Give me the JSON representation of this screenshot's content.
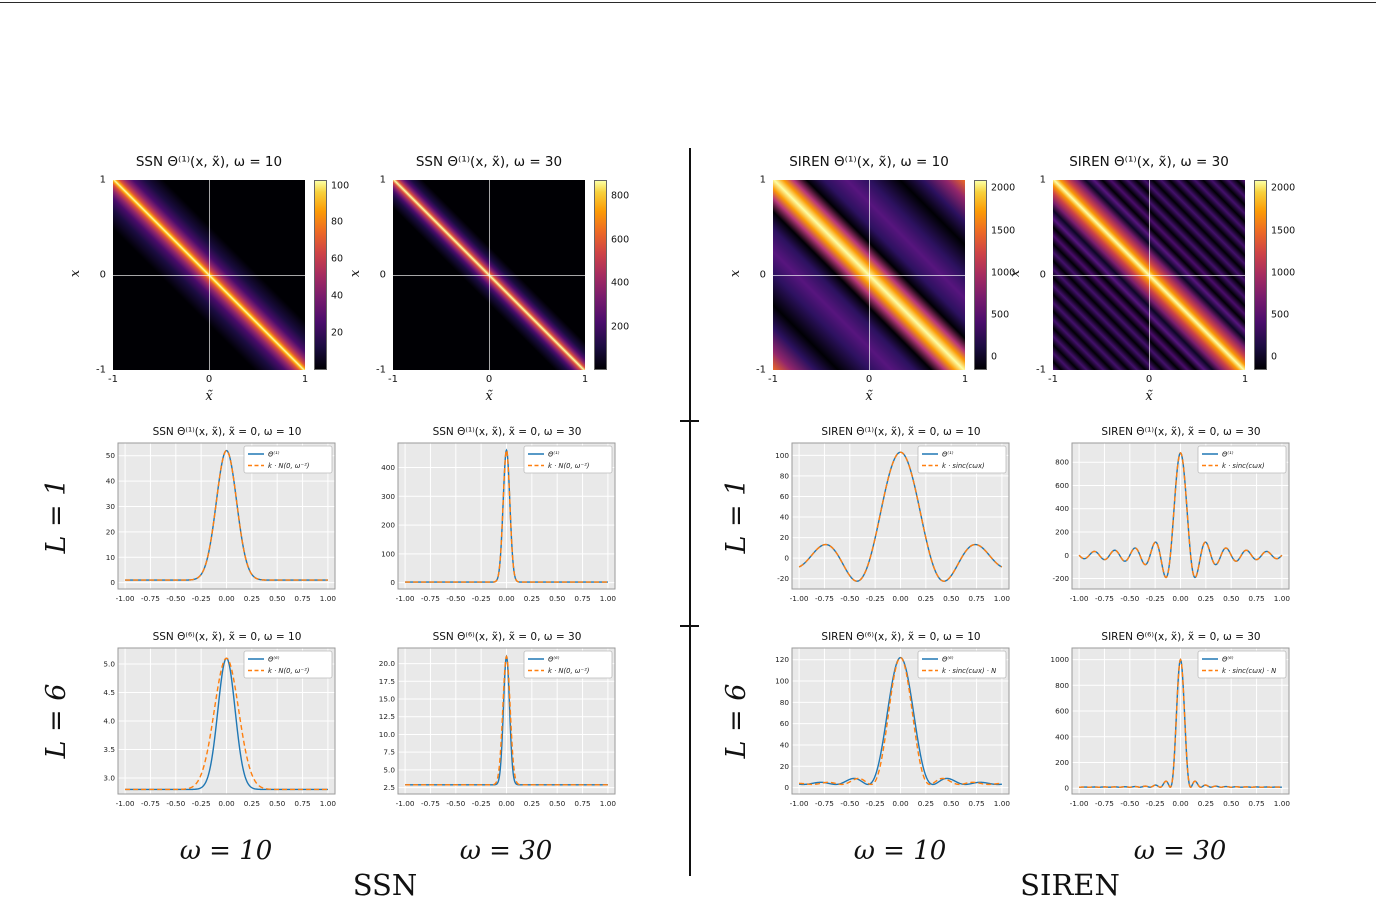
{
  "colors": {
    "series_blue": "#1f77b4",
    "series_orange": "#ff7f0e",
    "plot_bg": "#e9e9e9",
    "grid": "#ffffff",
    "frame": "#9a9a9a",
    "divider": "#111111",
    "colormap_stops": [
      "#000004 0%",
      "#1b0c41 12%",
      "#4a0c6b 25%",
      "#781c6d 38%",
      "#a52c60 50%",
      "#cf4446 62%",
      "#ed6925 73%",
      "#fb9b06 84%",
      "#f7d03c 94%",
      "#fcffa4 100%"
    ]
  },
  "layout_labels": {
    "row_labels": [
      "L = 1",
      "L = 6"
    ],
    "omega_cols": [
      "ω = 10",
      "ω = 30",
      "ω = 10",
      "ω = 30"
    ],
    "groups": [
      "SSN",
      "SIREN"
    ]
  },
  "chart_data": {
    "shared_x": {
      "xtick_values": [
        -1,
        -0.75,
        -0.5,
        -0.25,
        0,
        0.25,
        0.5,
        0.75,
        1
      ],
      "xtick_labels": [
        "-1.00",
        "-0.75",
        "-0.50",
        "-0.25",
        "0.00",
        "0.25",
        "0.50",
        "0.75",
        "1.00"
      ]
    },
    "heatmaps": [
      {
        "type": "heatmap",
        "title": "SSN Θ⁽¹⁾(x, x̃), ω = 10",
        "xlabel": "x̃",
        "ylabel": "x",
        "xlim": [
          -1,
          1
        ],
        "ylim": [
          -1,
          1
        ],
        "xtick_labels": [
          "-1",
          "0",
          "1"
        ],
        "ytick_labels": [
          "1",
          "0",
          "-1"
        ],
        "pattern": "narrow bright band along anti-diagonal, black elsewhere",
        "colorbar": {
          "min": 0,
          "max": 103,
          "tick_values": [
            100,
            80,
            60,
            40,
            20
          ],
          "tick_labels": [
            "100",
            "80",
            "60",
            "40",
            "20"
          ]
        },
        "gradient_stops": [
          "#000004 0%",
          "#000004 37%",
          "#1b0c41 42%",
          "#4a0c6b 45%",
          "#92266b 47%",
          "#dd513a 48.6%",
          "#fca50a 49.4%",
          "#fcffa4 50%",
          "#fca50a 50.6%",
          "#dd513a 51.4%",
          "#92266b 53%",
          "#4a0c6b 55%",
          "#1b0c41 58%",
          "#000004 63%",
          "#000004 100%"
        ]
      },
      {
        "type": "heatmap",
        "title": "SSN Θ⁽¹⁾(x, x̃), ω = 30",
        "xlabel": "x̃",
        "ylabel": "x",
        "xlim": [
          -1,
          1
        ],
        "ylim": [
          -1,
          1
        ],
        "xtick_labels": [
          "-1",
          "0",
          "1"
        ],
        "ytick_labels": [
          "1",
          "0",
          "-1"
        ],
        "pattern": "very narrow bright band along anti-diagonal, black elsewhere",
        "colorbar": {
          "min": 0,
          "max": 875,
          "tick_values": [
            800,
            600,
            400,
            200
          ],
          "tick_labels": [
            "800",
            "600",
            "400",
            "200"
          ]
        },
        "gradient_stops": [
          "#000004 0%",
          "#000004 42.5%",
          "#1b0c41 45.5%",
          "#4a0c6b 47%",
          "#92266b 48.2%",
          "#dd513a 49.2%",
          "#fcffa4 50%",
          "#dd513a 50.8%",
          "#92266b 51.8%",
          "#4a0c6b 53%",
          "#1b0c41 54.5%",
          "#000004 57.5%",
          "#000004 100%"
        ]
      },
      {
        "type": "heatmap",
        "title": "SIREN Θ⁽¹⁾(x, x̃), ω = 10",
        "xlabel": "x̃",
        "ylabel": "x",
        "xlim": [
          -1,
          1
        ],
        "ylim": [
          -1,
          1
        ],
        "xtick_labels": [
          "-1",
          "0",
          "1"
        ],
        "ytick_labels": [
          "1",
          "0",
          "-1"
        ],
        "pattern": "wide bright anti-diagonal band with sinc side lobes, purple/black oscillations, orange glow at corners",
        "colorbar": {
          "min": -150,
          "max": 2100,
          "tick_values": [
            2000,
            1500,
            1000,
            500,
            0
          ],
          "tick_labels": [
            "2000",
            "1500",
            "1000",
            "500",
            "0"
          ]
        },
        "gradient_stops": [
          "#ed6925 0%",
          "#92266b 5%",
          "#2c115f 11%",
          "#000004 17%",
          "#2c115f 25%",
          "#57157e 31%",
          "#2c115f 37%",
          "#000004 41.5%",
          "#b73779 45%",
          "#fb9b06 47.5%",
          "#fcffa4 50%",
          "#fb9b06 52.5%",
          "#b73779 55%",
          "#000004 58.5%",
          "#2c115f 63%",
          "#57157e 69%",
          "#2c115f 75%",
          "#000004 83%",
          "#2c115f 89%",
          "#92266b 95%",
          "#ed6925 100%"
        ]
      },
      {
        "type": "heatmap",
        "title": "SIREN Θ⁽¹⁾(x, x̃), ω = 30",
        "xlabel": "x̃",
        "ylabel": "x",
        "xlim": [
          -1,
          1
        ],
        "ylim": [
          -1,
          1
        ],
        "xtick_labels": [
          "-1",
          "0",
          "1"
        ],
        "ytick_labels": [
          "1",
          "0",
          "-1"
        ],
        "pattern": "narrow bright anti-diagonal band with many fine purple/black sinc stripes",
        "colorbar": {
          "min": -150,
          "max": 2100,
          "tick_values": [
            2000,
            1500,
            1000,
            500,
            0
          ],
          "tick_labels": [
            "2000",
            "1500",
            "1000",
            "500",
            "0"
          ]
        },
        "gradient_stops": [
          "#57157e 0%",
          "#000004 2.2%",
          "#43106b 4.4%",
          "#000004 6.6%",
          "#43106b 8.8%",
          "#000004 11%",
          "#43106b 13.2%",
          "#000004 15.4%",
          "#43106b 17.6%",
          "#000004 19.8%",
          "#43106b 22%",
          "#000004 24.2%",
          "#43106b 26.4%",
          "#000004 28.6%",
          "#43106b 30.8%",
          "#000004 33%",
          "#4a0c6b 35.2%",
          "#000004 37.4%",
          "#57157e 39.6%",
          "#0b0724 41.8%",
          "#781c6d 44%",
          "#cf4446 46.5%",
          "#fb9b06 48.5%",
          "#fcffa4 50%",
          "#fb9b06 51.5%",
          "#cf4446 53.5%",
          "#781c6d 56%",
          "#0b0724 58.2%",
          "#57157e 60.4%",
          "#000004 62.6%",
          "#4a0c6b 64.8%",
          "#000004 67%",
          "#43106b 69.2%",
          "#000004 71.4%",
          "#43106b 73.6%",
          "#000004 75.8%",
          "#43106b 78%",
          "#000004 80.2%",
          "#43106b 82.4%",
          "#000004 84.6%",
          "#43106b 86.8%",
          "#000004 89%",
          "#43106b 91.2%",
          "#000004 93.4%",
          "#43106b 95.6%",
          "#000004 97.8%",
          "#57157e 100%"
        ]
      }
    ],
    "line_plots": [
      {
        "type": "line",
        "title": "SSN Θ⁽¹⁾(x, x̃), x̃ = 0, ω = 10",
        "xlim": [
          -1.07,
          1.07
        ],
        "ylim": [
          -2.5,
          55
        ],
        "ytick_values": [
          0,
          10,
          20,
          30,
          40,
          50
        ],
        "ytick_labels": [
          "0",
          "10",
          "20",
          "30",
          "40",
          "50"
        ],
        "series": [
          {
            "name": "Θ⁽¹⁾",
            "color_key": "series_blue",
            "style": "solid",
            "shape": "gaussian",
            "base": 1,
            "peak": 52,
            "sigma": 0.1
          },
          {
            "name": "k · N(0, ω⁻²)",
            "color_key": "series_orange",
            "style": "dashed",
            "shape": "gaussian",
            "base": 1,
            "peak": 52,
            "sigma": 0.1
          }
        ]
      },
      {
        "type": "line",
        "title": "SSN Θ⁽¹⁾(x, x̃), x̃ = 0, ω = 30",
        "xlim": [
          -1.07,
          1.07
        ],
        "ylim": [
          -22,
          485
        ],
        "ytick_values": [
          0,
          100,
          200,
          300,
          400
        ],
        "ytick_labels": [
          "0",
          "100",
          "200",
          "300",
          "400"
        ],
        "series": [
          {
            "name": "Θ⁽¹⁾",
            "color_key": "series_blue",
            "style": "solid",
            "shape": "gaussian",
            "base": 2,
            "peak": 460,
            "sigma": 0.033
          },
          {
            "name": "k · N(0, ω⁻²)",
            "color_key": "series_orange",
            "style": "dashed",
            "shape": "gaussian",
            "base": 2,
            "peak": 460,
            "sigma": 0.033
          }
        ]
      },
      {
        "type": "line",
        "title": "SIREN Θ⁽¹⁾(x, x̃), x̃ = 0, ω = 10",
        "xlim": [
          -1.07,
          1.07
        ],
        "ylim": [
          -30,
          112
        ],
        "ytick_values": [
          -20,
          0,
          20,
          40,
          60,
          80,
          100
        ],
        "ytick_labels": [
          "-20",
          "0",
          "20",
          "40",
          "60",
          "80",
          "100"
        ],
        "series": [
          {
            "name": "Θ⁽¹⁾",
            "color_key": "series_blue",
            "style": "solid",
            "shape": "sinc",
            "base": 0,
            "peak": 103,
            "zero": 0.3
          },
          {
            "name": "k · sinc(cωx)",
            "color_key": "series_orange",
            "style": "dashed",
            "shape": "sinc",
            "base": 0,
            "peak": 103,
            "zero": 0.3
          }
        ]
      },
      {
        "type": "line",
        "title": "SIREN Θ⁽¹⁾(x, x̃), x̃ = 0, ω = 30",
        "xlim": [
          -1.07,
          1.07
        ],
        "ylim": [
          -290,
          965
        ],
        "ytick_values": [
          -200,
          0,
          200,
          400,
          600,
          800
        ],
        "ytick_labels": [
          "-200",
          "0",
          "200",
          "400",
          "600",
          "800"
        ],
        "series": [
          {
            "name": "Θ⁽¹⁾",
            "color_key": "series_blue",
            "style": "solid",
            "shape": "sinc",
            "base": 0,
            "peak": 880,
            "zero": 0.1
          },
          {
            "name": "k · sinc(cωx)",
            "color_key": "series_orange",
            "style": "dashed",
            "shape": "sinc",
            "base": 0,
            "peak": 880,
            "zero": 0.1
          }
        ]
      },
      {
        "type": "line",
        "title": "SSN Θ⁽⁶⁾(x, x̃), x̃ = 0, ω = 10",
        "xlim": [
          -1.07,
          1.07
        ],
        "ylim": [
          2.72,
          5.28
        ],
        "ytick_values": [
          3.0,
          3.5,
          4.0,
          4.5,
          5.0
        ],
        "ytick_labels": [
          "3.0",
          "3.5",
          "4.0",
          "4.5",
          "5.0"
        ],
        "series": [
          {
            "name": "Θ⁽⁶⁾",
            "color_key": "series_blue",
            "style": "solid",
            "shape": "gaussian",
            "base": 2.8,
            "peak": 5.1,
            "sigma": 0.085
          },
          {
            "name": "k · N(0, ω⁻²)",
            "color_key": "series_orange",
            "style": "dashed",
            "shape": "gaussian",
            "base": 2.8,
            "peak": 5.1,
            "sigma": 0.12
          }
        ]
      },
      {
        "type": "line",
        "title": "SSN Θ⁽⁶⁾(x, x̃), x̃ = 0, ω = 30",
        "xlim": [
          -1.07,
          1.07
        ],
        "ylim": [
          1.6,
          22.2
        ],
        "ytick_values": [
          2.5,
          5.0,
          7.5,
          10.0,
          12.5,
          15.0,
          17.5,
          20.0
        ],
        "ytick_labels": [
          "2.5",
          "5.0",
          "7.5",
          "10.0",
          "12.5",
          "15.0",
          "17.5",
          "20.0"
        ],
        "series": [
          {
            "name": "Θ⁽⁶⁾",
            "color_key": "series_blue",
            "style": "solid",
            "shape": "gaussian",
            "base": 2.9,
            "peak": 21,
            "sigma": 0.03
          },
          {
            "name": "k · N(0, ω⁻²)",
            "color_key": "series_orange",
            "style": "dashed",
            "shape": "gaussian",
            "base": 2.9,
            "peak": 21,
            "sigma": 0.036
          }
        ]
      },
      {
        "type": "line",
        "title": "SIREN Θ⁽⁶⁾(x, x̃), x̃ = 0, ω = 10",
        "xlim": [
          -1.07,
          1.07
        ],
        "ylim": [
          -6,
          131
        ],
        "ytick_values": [
          0,
          20,
          40,
          60,
          80,
          100,
          120
        ],
        "ytick_labels": [
          "0",
          "20",
          "40",
          "60",
          "80",
          "100",
          "120"
        ],
        "series": [
          {
            "name": "Θ⁽⁶⁾",
            "color_key": "series_blue",
            "style": "solid",
            "shape": "sinc2",
            "base": 3,
            "peak": 122,
            "zero": 0.32
          },
          {
            "name": "k · sinc(cωx) · N",
            "color_key": "series_orange",
            "style": "dashed",
            "shape": "sinc2",
            "base": 3,
            "peak": 122,
            "zero": 0.29
          }
        ]
      },
      {
        "type": "line",
        "title": "SIREN Θ⁽⁶⁾(x, x̃), x̃ = 0, ω = 30",
        "xlim": [
          -1.07,
          1.07
        ],
        "ylim": [
          -45,
          1090
        ],
        "ytick_values": [
          0,
          200,
          400,
          600,
          800,
          1000
        ],
        "ytick_labels": [
          "0",
          "200",
          "400",
          "600",
          "800",
          "1000"
        ],
        "series": [
          {
            "name": "Θ⁽⁶⁾",
            "color_key": "series_blue",
            "style": "solid",
            "shape": "sinc2",
            "base": 8,
            "peak": 1000,
            "zero": 0.1
          },
          {
            "name": "k · sinc(cωx) · N",
            "color_key": "series_orange",
            "style": "dashed",
            "shape": "sinc2",
            "base": 8,
            "peak": 1000,
            "zero": 0.1
          }
        ]
      }
    ]
  }
}
